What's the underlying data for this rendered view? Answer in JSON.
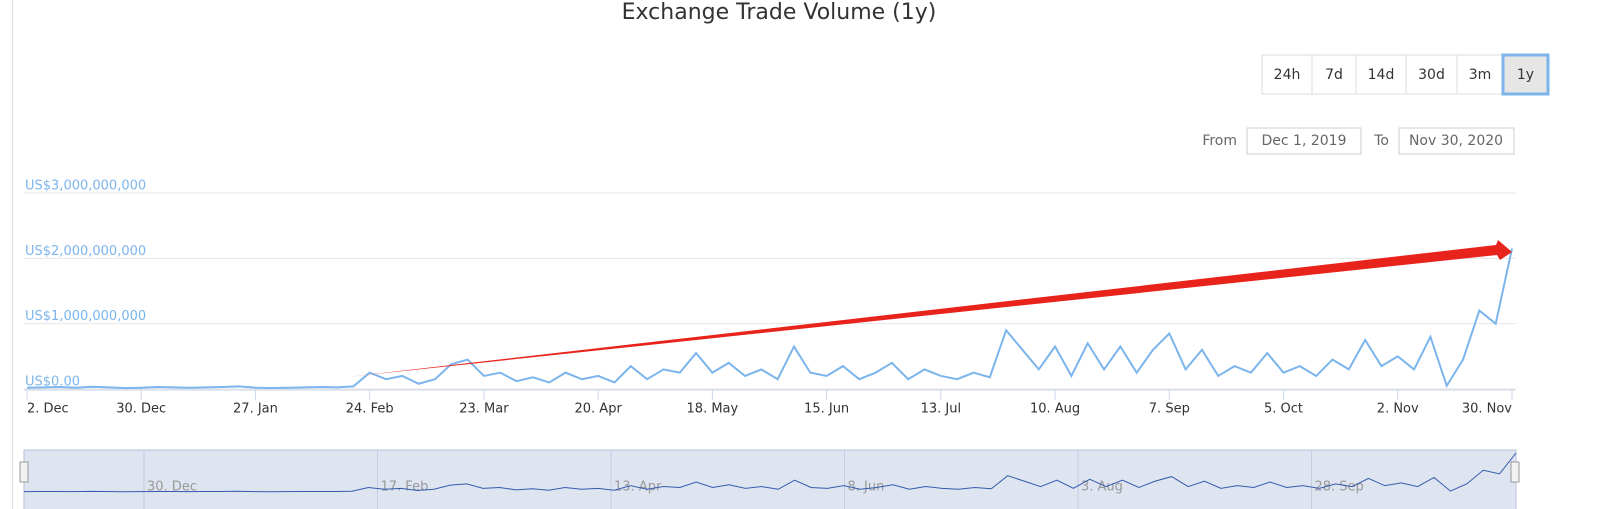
{
  "chart_data": {
    "type": "line",
    "title": "Exchange Trade Volume (1y)",
    "range_buttons": [
      "24h",
      "7d",
      "14d",
      "30d",
      "3m",
      "1y"
    ],
    "selected_range": "1y",
    "from_label": "From",
    "from_date": "Dec 1, 2019",
    "to_label": "To",
    "to_date": "Nov 30, 2020",
    "categories": [
      "2. Dec",
      null,
      null,
      null,
      null,
      null,
      null,
      "30. Dec",
      null,
      null,
      null,
      null,
      null,
      null,
      "27. Jan",
      null,
      null,
      null,
      null,
      null,
      null,
      "24. Feb",
      null,
      null,
      null,
      null,
      null,
      null,
      "23. Mar",
      null,
      null,
      null,
      null,
      null,
      null,
      "20. Apr",
      null,
      null,
      null,
      null,
      null,
      null,
      "18. May",
      null,
      null,
      null,
      null,
      null,
      null,
      "15. Jun",
      null,
      null,
      null,
      null,
      null,
      null,
      "13. Jul",
      null,
      null,
      null,
      null,
      null,
      null,
      "10. Aug",
      null,
      null,
      null,
      null,
      null,
      null,
      "7. Sep",
      null,
      null,
      null,
      null,
      null,
      null,
      "5. Oct",
      null,
      null,
      null,
      null,
      null,
      null,
      "2. Nov",
      null,
      null,
      null,
      null,
      null,
      null,
      "30. Nov"
    ],
    "values": [
      20000000,
      25000000,
      30000000,
      20000000,
      35000000,
      25000000,
      15000000,
      20000000,
      30000000,
      25000000,
      20000000,
      25000000,
      30000000,
      40000000,
      20000000,
      15000000,
      20000000,
      25000000,
      30000000,
      25000000,
      40000000,
      250000000,
      150000000,
      200000000,
      80000000,
      150000000,
      380000000,
      450000000,
      200000000,
      250000000,
      120000000,
      180000000,
      100000000,
      250000000,
      150000000,
      200000000,
      100000000,
      350000000,
      150000000,
      300000000,
      250000000,
      550000000,
      250000000,
      400000000,
      200000000,
      300000000,
      150000000,
      650000000,
      250000000,
      200000000,
      350000000,
      150000000,
      250000000,
      400000000,
      150000000,
      300000000,
      200000000,
      150000000,
      250000000,
      180000000,
      900000000,
      600000000,
      300000000,
      650000000,
      200000000,
      700000000,
      300000000,
      650000000,
      250000000,
      600000000,
      850000000,
      300000000,
      600000000,
      200000000,
      350000000,
      250000000,
      550000000,
      250000000,
      350000000,
      200000000,
      450000000,
      300000000,
      750000000,
      350000000,
      500000000,
      300000000,
      800000000,
      50000000,
      450000000,
      1200000000,
      1000000000,
      2150000000
    ],
    "color": "#7cb5ec",
    "ylim": [
      0,
      3000000000
    ],
    "yticks": [
      {
        "value": 0,
        "label": "US$0.00"
      },
      {
        "value": 1000000000,
        "label": "US$1,000,000,000"
      },
      {
        "value": 2000000000,
        "label": "US$2,000,000,000"
      },
      {
        "value": 3000000000,
        "label": "US$3,000,000,000"
      }
    ],
    "grid": true,
    "navigator_labels": [
      "30. Dec",
      "17. Feb",
      "13. Apr",
      "8. Jun",
      "3. Aug",
      "28. Sep"
    ]
  }
}
